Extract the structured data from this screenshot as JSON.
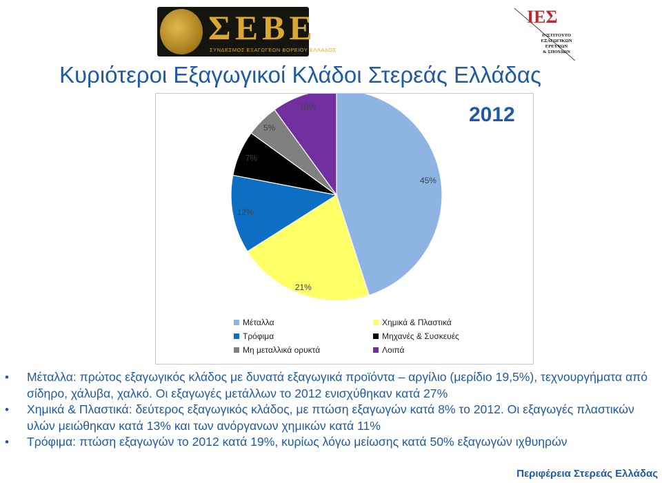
{
  "logos": {
    "sebe": {
      "letters": "ΣΕΒΕ",
      "subtitle": "ΣΥΝΔΕΣΜΟΣ ΕΞΑΓΩΓΕΩΝ ΒΟΡΕΙΟΥ ΕΛΛΑΔΟΣ"
    },
    "iees": {
      "monogram": "ΙΕΣ",
      "name_lines": [
        "ΙΝΣΤΙΤΟΥΤΟ",
        "ΕΞΑΓΩΓΙΚΩΝ",
        "ΕΡΕΥΝΩΝ",
        "& ΣΠΟΥΔΩΝ"
      ]
    }
  },
  "title": "Κυριότεροι Εξαγωγικοί Κλάδοι Στερεάς Ελλάδας",
  "year_label": "2012",
  "chart_data": {
    "type": "pie",
    "series": [
      {
        "name": "Μέταλλα",
        "value": 45,
        "label": "45%",
        "color": "#8eb4e3"
      },
      {
        "name": "Χημικά & Πλαστικά",
        "value": 21,
        "label": "21%",
        "color": "#ffff66"
      },
      {
        "name": "Τρόφιμα",
        "value": 12,
        "label": "12%",
        "color": "#0d6fc4"
      },
      {
        "name": "Μηχανές & Συσκευές",
        "value": 7,
        "label": "7%",
        "color": "#000000"
      },
      {
        "name": "Μη μεταλλικά ορυκτά",
        "value": 5,
        "label": "5%",
        "color": "#808080"
      },
      {
        "name": "Λοιπά",
        "value": 10,
        "label": "10%",
        "color": "#7030a0"
      }
    ],
    "legend_order": [
      "Μέταλλα",
      "Χημικά & Πλαστικά",
      "Τρόφιμα",
      "Μηχανές & Συσκευές",
      "Μη μεταλλικά ορυκτά",
      "Λοιπά"
    ],
    "legend_position": "bottom",
    "start_angle_deg": 0,
    "direction": "clockwise"
  },
  "bullets": [
    "Μέταλλα: πρώτος εξαγωγικός κλάδος με δυνατά εξαγωγικά προϊόντα – αργίλιο (μερίδιο 19,5%), τεχνουργήματα από σίδηρο, χάλυβα, χαλκό. Οι εξαγωγές μετάλλων το 2012 ενισχύθηκαν κατά 27%",
    "Χημικά & Πλαστικά: δεύτερος εξαγωγικός κλάδος, με πτώση εξαγωγών κατά 8% το 2012. Οι εξαγωγές πλαστικών υλών μειώθηκαν κατά 13% και των ανόργανων χημικών κατά 11%",
    "Τρόφιμα: πτώση εξαγωγών το 2012 κατά 19%, κυρίως λόγω μείωσης κατά 50% εξαγωγών ιχθυηρών"
  ],
  "footer": "Περιφέρεια Στερεάς Ελλάδας",
  "colors": {
    "accent": "#1f5aa6"
  }
}
